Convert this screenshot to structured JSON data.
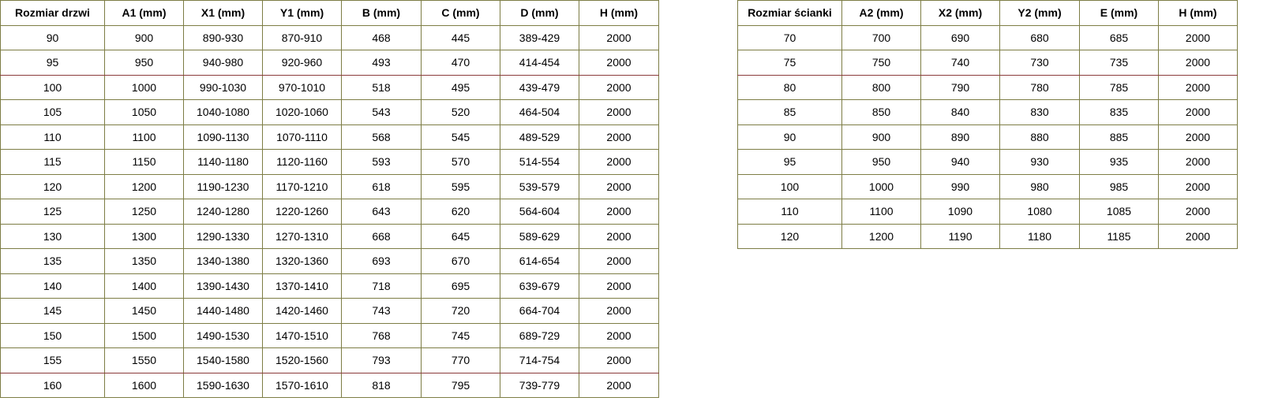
{
  "tables": [
    {
      "headers": [
        "Rozmiar drzwi",
        "A1 (mm)",
        "X1 (mm)",
        "Y1 (mm)",
        "B (mm)",
        "C (mm)",
        "D (mm)",
        "H (mm)"
      ],
      "rows": [
        [
          90,
          900,
          "890-930",
          "870-910",
          468,
          445,
          "389-429",
          2000
        ],
        [
          95,
          950,
          "940-980",
          "920-960",
          493,
          470,
          "414-454",
          2000
        ],
        [
          100,
          1000,
          "990-1030",
          "970-1010",
          518,
          495,
          "439-479",
          2000
        ],
        [
          105,
          1050,
          "1040-1080",
          "1020-1060",
          543,
          520,
          "464-504",
          2000
        ],
        [
          110,
          1100,
          "1090-1130",
          "1070-1110",
          568,
          545,
          "489-529",
          2000
        ],
        [
          115,
          1150,
          "1140-1180",
          "1120-1160",
          593,
          570,
          "514-554",
          2000
        ],
        [
          120,
          1200,
          "1190-1230",
          "1170-1210",
          618,
          595,
          "539-579",
          2000
        ],
        [
          125,
          1250,
          "1240-1280",
          "1220-1260",
          643,
          620,
          "564-604",
          2000
        ],
        [
          130,
          1300,
          "1290-1330",
          "1270-1310",
          668,
          645,
          "589-629",
          2000
        ],
        [
          135,
          1350,
          "1340-1380",
          "1320-1360",
          693,
          670,
          "614-654",
          2000
        ],
        [
          140,
          1400,
          "1390-1430",
          "1370-1410",
          718,
          695,
          "639-679",
          2000
        ],
        [
          145,
          1450,
          "1440-1480",
          "1420-1460",
          743,
          720,
          "664-704",
          2000
        ],
        [
          150,
          1500,
          "1490-1530",
          "1470-1510",
          768,
          745,
          "689-729",
          2000
        ],
        [
          155,
          1550,
          "1540-1580",
          "1520-1560",
          793,
          770,
          "714-754",
          2000
        ],
        [
          160,
          1600,
          "1590-1630",
          "1570-1610",
          818,
          795,
          "739-779",
          2000
        ]
      ]
    },
    {
      "headers": [
        "Rozmiar ścianki",
        "A2 (mm)",
        "X2 (mm)",
        "Y2 (mm)",
        "E (mm)",
        "H (mm)"
      ],
      "rows": [
        [
          70,
          700,
          690,
          680,
          685,
          2000
        ],
        [
          75,
          750,
          740,
          730,
          735,
          2000
        ],
        [
          80,
          800,
          790,
          780,
          785,
          2000
        ],
        [
          85,
          850,
          840,
          830,
          835,
          2000
        ],
        [
          90,
          900,
          890,
          880,
          885,
          2000
        ],
        [
          95,
          950,
          940,
          930,
          935,
          2000
        ],
        [
          100,
          1000,
          990,
          980,
          985,
          2000
        ],
        [
          110,
          1100,
          1090,
          1080,
          1085,
          2000
        ],
        [
          120,
          1200,
          1190,
          1180,
          1185,
          2000
        ]
      ]
    }
  ]
}
